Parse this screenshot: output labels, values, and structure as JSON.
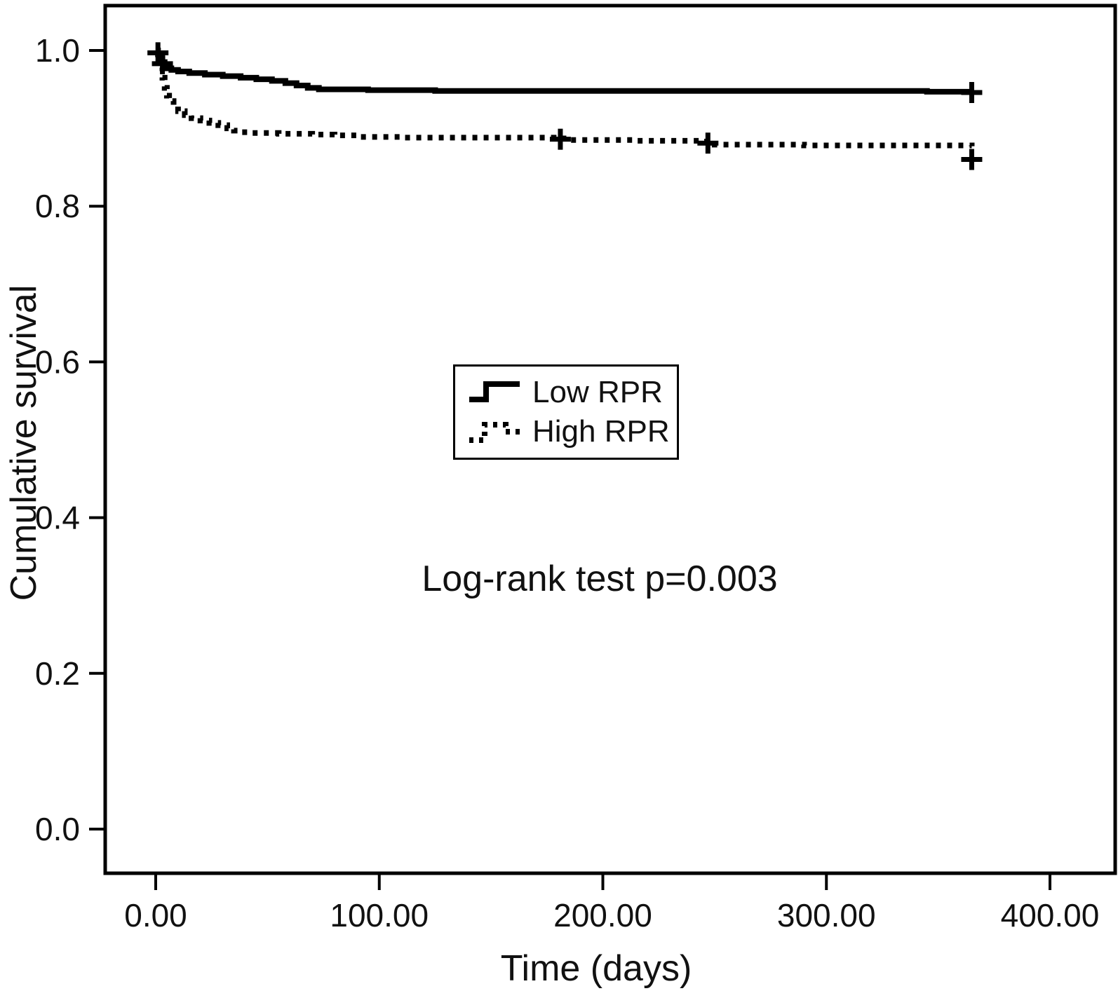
{
  "chart_data": {
    "type": "line",
    "subtype": "kaplan_meier_step",
    "title": "",
    "xlabel": "Time (days)",
    "ylabel": "Cumulative survival",
    "annotation": "Log-rank test p=0.003",
    "xlim": [
      -25,
      420
    ],
    "ylim": [
      -0.06,
      1.04
    ],
    "grid": false,
    "legend_position": "center",
    "line_color": "#000000",
    "background_color": "#ffffff",
    "x_ticks": [
      {
        "value": 0,
        "label": "0.00"
      },
      {
        "value": 100,
        "label": "100.00"
      },
      {
        "value": 200,
        "label": "200.00"
      },
      {
        "value": 300,
        "label": "300.00"
      },
      {
        "value": 400,
        "label": "400.00"
      }
    ],
    "y_ticks": [
      {
        "value": 0.0,
        "label": "0.0"
      },
      {
        "value": 0.2,
        "label": "0.2"
      },
      {
        "value": 0.4,
        "label": "0.4"
      },
      {
        "value": 0.6,
        "label": "0.6"
      },
      {
        "value": 0.8,
        "label": "0.8"
      },
      {
        "value": 1.0,
        "label": "1.0"
      }
    ],
    "series": [
      {
        "name": "Low RPR",
        "style": "solid",
        "color": "#000000",
        "points": [
          [
            0,
            1.0
          ],
          [
            1,
            0.995
          ],
          [
            2,
            0.99
          ],
          [
            3,
            0.985
          ],
          [
            4,
            0.98
          ],
          [
            5,
            0.977
          ],
          [
            7,
            0.975
          ],
          [
            10,
            0.973
          ],
          [
            15,
            0.971
          ],
          [
            22,
            0.969
          ],
          [
            30,
            0.967
          ],
          [
            38,
            0.965
          ],
          [
            45,
            0.963
          ],
          [
            52,
            0.961
          ],
          [
            58,
            0.958
          ],
          [
            63,
            0.955
          ],
          [
            68,
            0.952
          ],
          [
            73,
            0.95
          ],
          [
            95,
            0.949
          ],
          [
            125,
            0.948
          ],
          [
            345,
            0.947
          ],
          [
            365,
            0.947
          ]
        ],
        "censors": [
          [
            1,
            0.997
          ],
          [
            3,
            0.983
          ],
          [
            365,
            0.946
          ]
        ]
      },
      {
        "name": "High RPR",
        "style": "dotted",
        "color": "#000000",
        "points": [
          [
            0,
            1.0
          ],
          [
            1,
            0.99
          ],
          [
            2,
            0.978
          ],
          [
            3,
            0.965
          ],
          [
            4,
            0.952
          ],
          [
            5,
            0.942
          ],
          [
            6,
            0.935
          ],
          [
            8,
            0.928
          ],
          [
            10,
            0.922
          ],
          [
            13,
            0.917
          ],
          [
            16,
            0.913
          ],
          [
            20,
            0.91
          ],
          [
            24,
            0.907
          ],
          [
            28,
            0.904
          ],
          [
            32,
            0.9
          ],
          [
            35,
            0.897
          ],
          [
            38,
            0.895
          ],
          [
            42,
            0.894
          ],
          [
            55,
            0.893
          ],
          [
            70,
            0.892
          ],
          [
            80,
            0.891
          ],
          [
            90,
            0.889
          ],
          [
            110,
            0.888
          ],
          [
            150,
            0.888
          ],
          [
            178,
            0.887
          ],
          [
            185,
            0.885
          ],
          [
            215,
            0.884
          ],
          [
            243,
            0.883
          ],
          [
            250,
            0.879
          ],
          [
            290,
            0.878
          ],
          [
            365,
            0.877
          ]
        ],
        "censors": [
          [
            181,
            0.886
          ],
          [
            247,
            0.881
          ],
          [
            365,
            0.86
          ]
        ]
      }
    ]
  }
}
